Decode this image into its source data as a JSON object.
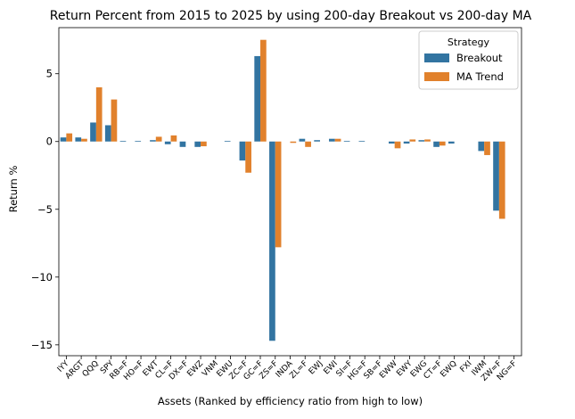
{
  "chart_data": {
    "type": "bar",
    "title": "Return Percent from 2015 to 2025 by using 200-day Breakout vs 200-day MA",
    "xlabel": "Assets (Ranked by efficiency ratio from high to low)",
    "ylabel": "Return %",
    "ylim": [
      -15.8,
      8.4
    ],
    "yticks": [
      -15,
      -10,
      -5,
      0,
      5
    ],
    "ytick_labels": [
      "−15",
      "−10",
      "−5",
      "0",
      "5"
    ],
    "grid": false,
    "categories": [
      "IYY",
      "ARGT",
      "QQQ",
      "SPY",
      "RB=F",
      "HO=F",
      "EWT",
      "CL=F",
      "DX=F",
      "EWZ",
      "VNM",
      "EWU",
      "ZC=F",
      "GC=F",
      "ZS=F",
      "INDA",
      "ZL=F",
      "EWJ",
      "EWI",
      "SI=F",
      "HG=F",
      "SB=F",
      "EWW",
      "EWY",
      "EWG",
      "CT=F",
      "EWQ",
      "FXI",
      "IWM",
      "ZW=F",
      "NG=F"
    ],
    "series": [
      {
        "name": "Breakout",
        "color": "#3274a1",
        "values": [
          0.3,
          0.3,
          1.4,
          1.2,
          0.05,
          0.05,
          0.1,
          -0.2,
          -0.4,
          -0.4,
          0.0,
          0.05,
          -1.4,
          6.3,
          -14.7,
          0.0,
          0.2,
          0.1,
          0.2,
          0.05,
          0.05,
          0.0,
          -0.15,
          -0.15,
          0.1,
          -0.4,
          -0.15,
          0.0,
          -0.7,
          -5.1,
          0.0
        ]
      },
      {
        "name": "MA Trend",
        "color": "#e1812c",
        "values": [
          0.6,
          0.2,
          4.0,
          3.1,
          0.0,
          0.0,
          0.35,
          0.45,
          0.0,
          -0.35,
          0.0,
          0.0,
          -2.3,
          7.5,
          -7.8,
          -0.1,
          -0.4,
          0.0,
          0.2,
          0.0,
          0.0,
          0.0,
          -0.5,
          0.15,
          0.15,
          -0.3,
          0.0,
          0.0,
          -1.0,
          -5.7,
          0.0
        ]
      }
    ],
    "legend": {
      "title": "Strategy",
      "placement": "top-right",
      "entries": [
        "Breakout",
        "MA Trend"
      ]
    }
  }
}
